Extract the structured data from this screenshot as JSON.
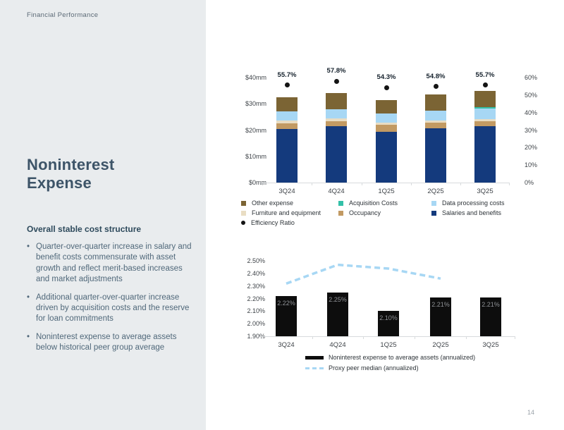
{
  "page": {
    "eyebrow": "Financial Performance",
    "page_number": "14",
    "accent_colors": {
      "panel_gray": "#e9ecee",
      "title_slate": "#3d5468"
    }
  },
  "sidebar": {
    "title": "Noninterest Expense",
    "subtitle": "Overall stable cost structure",
    "bullets": [
      "Quarter-over-quarter increase in salary and benefit costs commensurate with asset growth and reflect merit-based increases and market adjustments",
      "Additional quarter-over-quarter increase driven by acquisition costs and the reserve for loan commitments",
      "Noninterest expense to average assets below historical peer group average"
    ]
  },
  "chart_data": [
    {
      "type": "bar",
      "stacked": true,
      "title": "",
      "categories": [
        "3Q24",
        "4Q24",
        "1Q25",
        "2Q25",
        "3Q25"
      ],
      "series": [
        {
          "name": "Salaries and benefits",
          "color": "#143a7d",
          "values": [
            20.3,
            21.4,
            19.4,
            20.7,
            21.4
          ]
        },
        {
          "name": "Occupancy",
          "color": "#c29a63",
          "values": [
            2.3,
            2.0,
            2.6,
            2.1,
            2.0
          ]
        },
        {
          "name": "Furniture and equipment",
          "color": "#e9ddc3",
          "values": [
            1.0,
            1.0,
            0.9,
            0.9,
            0.8
          ]
        },
        {
          "name": "Data processing costs",
          "color": "#a7d7f4",
          "values": [
            3.4,
            3.6,
            3.4,
            3.6,
            3.9
          ]
        },
        {
          "name": "Acquisition Costs",
          "color": "#33c0a8",
          "values": [
            0,
            0,
            0,
            0,
            0.5
          ]
        },
        {
          "name": "Other expense",
          "color": "#7b6434",
          "values": [
            5.4,
            6.1,
            5.0,
            6.3,
            6.4
          ]
        }
      ],
      "dot_series": {
        "name": "Efficiency Ratio",
        "color": "#141414",
        "values": [
          55.7,
          57.8,
          54.3,
          54.8,
          55.7
        ],
        "labels": [
          "55.7%",
          "57.8%",
          "54.3%",
          "54.8%",
          "55.7%"
        ]
      },
      "left_axis": {
        "unit": "$mm",
        "min": 0,
        "max": 40,
        "ticks": [
          "$40mm",
          "$30mm",
          "$20mm",
          "$10mm",
          "$0mm"
        ],
        "tick_values": [
          40,
          30,
          20,
          10,
          0
        ]
      },
      "right_axis": {
        "unit": "%",
        "min": 0,
        "max": 60,
        "ticks": [
          "60%",
          "50%",
          "40%",
          "30%",
          "20%",
          "10%",
          "0%"
        ],
        "tick_values": [
          60,
          50,
          40,
          30,
          20,
          10,
          0
        ]
      },
      "legend": [
        {
          "label": "Other expense",
          "color": "#7b6434",
          "shape": "square",
          "col": 0,
          "row": 0
        },
        {
          "label": "Acquisition Costs",
          "color": "#33c0a8",
          "shape": "square",
          "col": 1,
          "row": 0
        },
        {
          "label": "Data processing costs",
          "color": "#a7d7f4",
          "shape": "square",
          "col": 2,
          "row": 0
        },
        {
          "label": "Furniture and equipment",
          "color": "#e9ddc3",
          "shape": "square",
          "col": 0,
          "row": 1
        },
        {
          "label": "Occupancy",
          "color": "#c29a63",
          "shape": "square",
          "col": 1,
          "row": 1
        },
        {
          "label": "Salaries and benefits",
          "color": "#143a7d",
          "shape": "square",
          "col": 2,
          "row": 1
        },
        {
          "label": "Efficiency Ratio",
          "color": "#141414",
          "shape": "dot",
          "col": 0,
          "row": 2
        }
      ],
      "grid": false,
      "legend_position": "bottom"
    },
    {
      "type": "bar+line",
      "categories": [
        "3Q24",
        "4Q24",
        "1Q25",
        "2Q25",
        "3Q25"
      ],
      "bars": {
        "name": "Noninterest expense to average assets (annualized)",
        "color": "#0d0d0d",
        "values": [
          2.22,
          2.25,
          2.1,
          2.21,
          2.21
        ],
        "labels": [
          "2.22%",
          "2.25%",
          "2.10%",
          "2.21%",
          "2.21%"
        ]
      },
      "line": {
        "name": "Proxy peer median (annualized)",
        "color": "#a7d7f4",
        "style": "dashed",
        "values": [
          2.32,
          2.47,
          2.44,
          2.36,
          null
        ]
      },
      "y_axis": {
        "unit": "%",
        "min": 1.9,
        "max": 2.5,
        "ticks": [
          "2.50%",
          "2.40%",
          "2.30%",
          "2.20%",
          "2.10%",
          "2.00%",
          "1.90%"
        ],
        "tick_values": [
          2.5,
          2.4,
          2.3,
          2.2,
          2.1,
          2.0,
          1.9
        ]
      },
      "grid": false,
      "legend_position": "bottom"
    }
  ]
}
